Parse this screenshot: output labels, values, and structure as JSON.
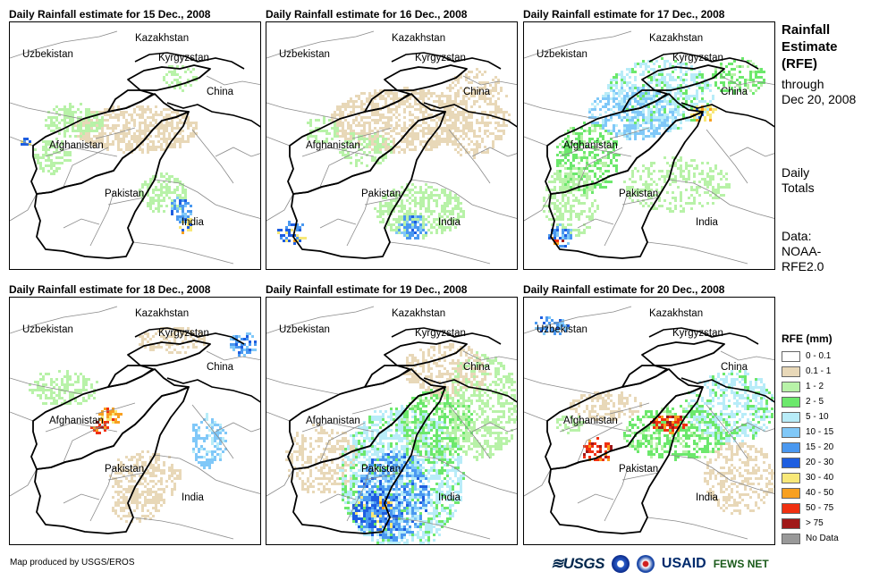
{
  "panels": [
    {
      "title": "Daily Rainfall estimate for 15 Dec., 2008",
      "variant": 0
    },
    {
      "title": "Daily Rainfall estimate for 16 Dec., 2008",
      "variant": 1
    },
    {
      "title": "Daily Rainfall estimate for 17 Dec., 2008",
      "variant": 2
    },
    {
      "title": "Daily Rainfall estimate for 18 Dec., 2008",
      "variant": 3
    },
    {
      "title": "Daily Rainfall estimate for 19 Dec., 2008",
      "variant": 4
    },
    {
      "title": "Daily Rainfall estimate for 20 Dec., 2008",
      "variant": 5
    }
  ],
  "countries": {
    "kazakhstan": "Kazakhstan",
    "uzbekistan": "Uzbekistan",
    "kyrgyzstan": "Kyrgyzstan",
    "china": "China",
    "afghanistan": "Afghanistan",
    "pakistan": "Pakistan",
    "india": "India"
  },
  "side": {
    "title_line1": "Rainfall",
    "title_line2": "Estimate",
    "title_line3": "(RFE)",
    "through_line1": "through",
    "through_line2": "Dec 20, 2008",
    "daily": "Daily Totals",
    "data_line1": "Data:",
    "data_line2": "NOAA-",
    "data_line3": "RFE2.0"
  },
  "legend": {
    "title": "RFE (mm)",
    "items": [
      {
        "label": "0 - 0.1",
        "color": "#ffffff"
      },
      {
        "label": "0.1 - 1",
        "color": "#e8d8b8"
      },
      {
        "label": "1 - 2",
        "color": "#b8f2a8"
      },
      {
        "label": "2 - 5",
        "color": "#6ce86c"
      },
      {
        "label": "5 - 10",
        "color": "#b8ecf8"
      },
      {
        "label": "10 - 15",
        "color": "#80c8f8"
      },
      {
        "label": "15 - 20",
        "color": "#4a98f0"
      },
      {
        "label": "20 - 30",
        "color": "#1e5ee0"
      },
      {
        "label": "30 - 40",
        "color": "#f8e878"
      },
      {
        "label": "40 - 50",
        "color": "#f8a020"
      },
      {
        "label": "50 - 75",
        "color": "#f03010"
      },
      {
        "label": "> 75",
        "color": "#a01818"
      },
      {
        "label": "No Data",
        "color": "#999999"
      }
    ]
  },
  "footer": {
    "credit": "Map produced by USGS/EROS",
    "logo_usgs": "≋USGS",
    "logo_usaid": "USAID",
    "logo_fews": "FEWS NET"
  }
}
